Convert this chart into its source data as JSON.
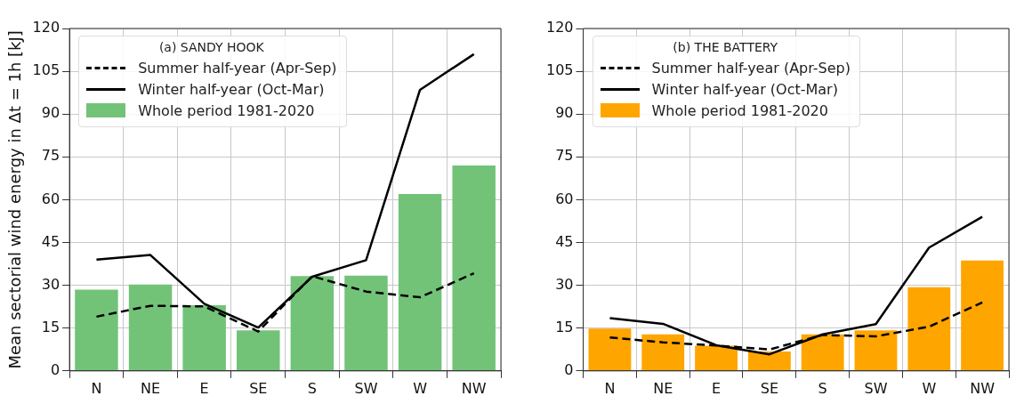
{
  "chart_data": [
    {
      "type": "bar",
      "legend_title": "(a) SANDY HOOK",
      "ylabel": "Mean sectorial wind energy in Δt = 1h [kJ]",
      "categories": [
        "N",
        "NE",
        "E",
        "SE",
        "S",
        "SW",
        "W",
        "NW"
      ],
      "series": [
        {
          "name": "Summer half-year (Apr-Sep)",
          "type": "line",
          "line_style": "dashed",
          "color": "#000000",
          "values": [
            19,
            22.8,
            22.6,
            13.8,
            33.2,
            27.8,
            25.8,
            34.2
          ]
        },
        {
          "name": "Winter half-year (Oct-Mar)",
          "type": "line",
          "line_style": "solid",
          "color": "#000000",
          "values": [
            39,
            40.6,
            23.5,
            15.2,
            33,
            38.8,
            98.5,
            111
          ]
        },
        {
          "name": "Whole period 1981-2020",
          "color": "#72c378",
          "values": [
            28.5,
            30.3,
            23,
            14.2,
            33.2,
            33.4,
            62,
            72
          ]
        }
      ],
      "ylim": [
        0,
        120
      ],
      "yticks": [
        0,
        15,
        30,
        45,
        60,
        75,
        90,
        105,
        120
      ],
      "grid": true,
      "legend": "top left",
      "marker": "none"
    },
    {
      "type": "bar",
      "legend_title": "(b) THE BATTERY",
      "categories": [
        "N",
        "NE",
        "E",
        "SE",
        "S",
        "SW",
        "W",
        "NW"
      ],
      "series": [
        {
          "name": "Summer half-year (Apr-Sep)",
          "type": "line",
          "line_style": "dashed",
          "color": "#000000",
          "values": [
            11.7,
            10,
            8.9,
            7.5,
            12.6,
            12.1,
            15.5,
            24
          ]
        },
        {
          "name": "Winter half-year (Oct-Mar)",
          "type": "line",
          "line_style": "solid",
          "color": "#000000",
          "values": [
            18.5,
            16.5,
            9,
            5.8,
            12.8,
            16.4,
            43.2,
            54
          ]
        },
        {
          "name": "Whole period 1981-2020",
          "color": "#ffa500",
          "values": [
            14.8,
            12.8,
            8.8,
            6.8,
            12.8,
            14.2,
            29.3,
            38.7
          ]
        }
      ],
      "ylim": [
        0,
        120
      ],
      "yticks": [
        0,
        15,
        30,
        45,
        60,
        75,
        90,
        105,
        120
      ],
      "grid": true,
      "legend": "top left",
      "marker": "none"
    }
  ]
}
